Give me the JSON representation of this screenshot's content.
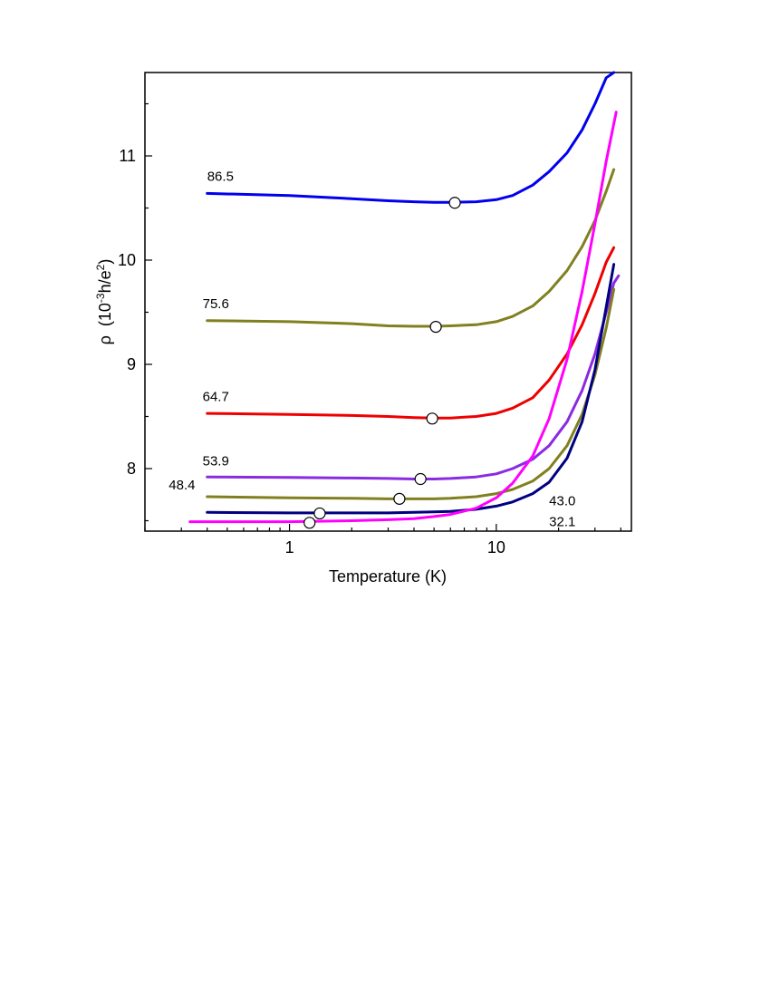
{
  "chart_data": {
    "type": "line",
    "title": "",
    "xlabel": "Temperature (K)",
    "ylabel": {
      "symbol": "ρ",
      "open": "(10",
      "exp1": "-3",
      "mid": "h/e",
      "exp2": "2",
      "close": ")"
    },
    "x_scale": "log",
    "xlim": [
      0.2,
      45
    ],
    "ylim": [
      7.4,
      11.8
    ],
    "x_ticks": [
      {
        "value": 1,
        "label": "1"
      },
      {
        "value": 10,
        "label": "10"
      }
    ],
    "y_ticks": [
      {
        "value": 8,
        "label": "8"
      },
      {
        "value": 9,
        "label": "9"
      },
      {
        "value": 10,
        "label": "10"
      },
      {
        "value": 11,
        "label": "11"
      }
    ],
    "grid": false,
    "legend": "none",
    "series": [
      {
        "name": "86.5",
        "color": "#0000ee",
        "x": [
          0.4,
          1,
          2,
          3,
          4,
          5,
          6,
          8,
          10,
          12,
          15,
          18,
          22,
          26,
          30,
          34,
          37
        ],
        "y": [
          10.64,
          10.62,
          10.59,
          10.57,
          10.56,
          10.555,
          10.555,
          10.56,
          10.58,
          10.62,
          10.72,
          10.85,
          11.03,
          11.25,
          11.5,
          11.75,
          11.85
        ],
        "marker": {
          "x": 6.3,
          "y": 10.55
        }
      },
      {
        "name": "75.6",
        "color": "#808020",
        "x": [
          0.4,
          1,
          2,
          3,
          4,
          5,
          6,
          8,
          10,
          12,
          15,
          18,
          22,
          26,
          30,
          34,
          37
        ],
        "y": [
          9.42,
          9.41,
          9.39,
          9.37,
          9.365,
          9.365,
          9.37,
          9.38,
          9.41,
          9.46,
          9.56,
          9.7,
          9.9,
          10.13,
          10.38,
          10.66,
          10.87
        ],
        "marker": {
          "x": 5.1,
          "y": 9.36
        }
      },
      {
        "name": "64.7",
        "color": "#ee0000",
        "x": [
          0.4,
          1,
          2,
          3,
          4,
          5,
          6,
          8,
          10,
          12,
          15,
          18,
          22,
          26,
          30,
          34,
          37
        ],
        "y": [
          8.53,
          8.52,
          8.51,
          8.5,
          8.49,
          8.485,
          8.485,
          8.5,
          8.53,
          8.58,
          8.68,
          8.85,
          9.1,
          9.38,
          9.68,
          9.98,
          10.12
        ],
        "marker": {
          "x": 4.9,
          "y": 8.48
        }
      },
      {
        "name": "53.9",
        "color": "#8a2be2",
        "x": [
          0.4,
          1,
          2,
          3,
          4,
          5,
          6,
          8,
          10,
          12,
          15,
          18,
          22,
          26,
          30,
          34,
          37,
          39
        ],
        "y": [
          7.92,
          7.915,
          7.91,
          7.905,
          7.9,
          7.9,
          7.905,
          7.92,
          7.95,
          8.0,
          8.09,
          8.22,
          8.45,
          8.75,
          9.1,
          9.5,
          9.78,
          9.85
        ],
        "marker": {
          "x": 4.3,
          "y": 7.9
        }
      },
      {
        "name": "48.4",
        "color": "#808020",
        "x": [
          0.4,
          1,
          2,
          3,
          4,
          5,
          6,
          8,
          10,
          12,
          15,
          18,
          22,
          26,
          30,
          34,
          37
        ],
        "y": [
          7.73,
          7.72,
          7.715,
          7.71,
          7.71,
          7.71,
          7.715,
          7.73,
          7.76,
          7.8,
          7.88,
          8.0,
          8.22,
          8.52,
          8.9,
          9.35,
          9.72
        ],
        "marker": {
          "x": 3.4,
          "y": 7.71
        }
      },
      {
        "name": "43.0",
        "color": "#000080",
        "x": [
          0.4,
          1,
          2,
          3,
          4,
          5,
          6,
          8,
          10,
          12,
          15,
          18,
          22,
          26,
          30,
          34,
          37
        ],
        "y": [
          7.58,
          7.575,
          7.575,
          7.575,
          7.58,
          7.585,
          7.59,
          7.61,
          7.64,
          7.68,
          7.76,
          7.87,
          8.1,
          8.45,
          8.95,
          9.55,
          9.96
        ],
        "marker": {
          "x": 1.4,
          "y": 7.57
        }
      },
      {
        "name": "32.1",
        "color": "#ff00ff",
        "x": [
          0.33,
          0.5,
          1,
          2,
          3,
          4,
          5,
          6,
          8,
          10,
          12,
          15,
          18,
          22,
          26,
          30,
          34,
          38
        ],
        "y": [
          7.49,
          7.49,
          7.49,
          7.5,
          7.51,
          7.52,
          7.54,
          7.56,
          7.62,
          7.72,
          7.86,
          8.12,
          8.48,
          9.05,
          9.7,
          10.35,
          10.95,
          11.42
        ],
        "marker": {
          "x": 1.25,
          "y": 7.48
        }
      }
    ],
    "annotations": [
      {
        "text": "86.5",
        "series": 0,
        "x": 0.4,
        "y": 10.76,
        "anchor": "start"
      },
      {
        "text": "75.6",
        "series": 1,
        "x": 0.38,
        "y": 9.54,
        "anchor": "start"
      },
      {
        "text": "64.7",
        "series": 2,
        "x": 0.38,
        "y": 8.65,
        "anchor": "start"
      },
      {
        "text": "53.9",
        "series": 3,
        "x": 0.38,
        "y": 8.03,
        "anchor": "start"
      },
      {
        "text": "48.4",
        "series": 4,
        "x": 0.35,
        "y": 7.8,
        "anchor": "end"
      },
      {
        "text": "43.0",
        "series": 5,
        "x": 18,
        "y": 7.65,
        "anchor": "start"
      },
      {
        "text": "32.1",
        "series": 6,
        "x": 18,
        "y": 7.45,
        "anchor": "start"
      }
    ]
  }
}
